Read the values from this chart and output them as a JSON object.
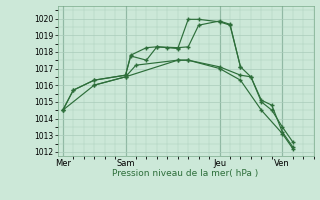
{
  "background_color": "#cce8d8",
  "grid_color": "#aaccbb",
  "line_color": "#2d6e3a",
  "xlabel": "Pression niveau de la mer( hPa )",
  "ylim": [
    1011.75,
    1020.75
  ],
  "yticks": [
    1012,
    1013,
    1014,
    1015,
    1016,
    1017,
    1018,
    1019,
    1020
  ],
  "xtick_labels": [
    "Mer",
    "Sam",
    "Jeu",
    "Ven"
  ],
  "xtick_positions": [
    0,
    24,
    60,
    84
  ],
  "xlim": [
    -2,
    96
  ],
  "vline_positions": [
    0,
    24,
    60,
    84
  ],
  "series": [
    {
      "x": [
        0,
        4,
        12,
        24,
        26,
        32,
        36,
        40,
        44,
        48,
        52,
        60,
        64,
        68
      ],
      "y": [
        1014.5,
        1015.7,
        1016.3,
        1016.6,
        1017.8,
        1018.25,
        1018.3,
        1018.25,
        1018.2,
        1019.95,
        1019.95,
        1019.8,
        1019.6,
        1017.1
      ]
    },
    {
      "x": [
        0,
        4,
        12,
        24,
        26,
        32,
        36,
        44,
        48,
        52,
        60,
        64,
        68,
        72,
        76,
        80,
        84,
        88
      ],
      "y": [
        1014.5,
        1015.7,
        1016.3,
        1016.6,
        1017.75,
        1017.5,
        1018.3,
        1018.25,
        1018.3,
        1019.6,
        1019.85,
        1019.65,
        1017.1,
        1016.5,
        1015.1,
        1014.8,
        1013.2,
        1012.3
      ]
    },
    {
      "x": [
        12,
        24,
        28,
        44,
        48,
        60,
        68,
        72,
        76,
        80,
        84,
        88
      ],
      "y": [
        1016.0,
        1016.5,
        1017.2,
        1017.5,
        1017.5,
        1017.1,
        1016.6,
        1016.5,
        1015.0,
        1014.5,
        1013.5,
        1012.6
      ]
    },
    {
      "x": [
        0,
        12,
        24,
        44,
        48,
        60,
        68,
        76,
        84,
        88
      ],
      "y": [
        1014.5,
        1016.0,
        1016.5,
        1017.5,
        1017.5,
        1017.0,
        1016.3,
        1014.5,
        1013.1,
        1012.2
      ]
    }
  ]
}
